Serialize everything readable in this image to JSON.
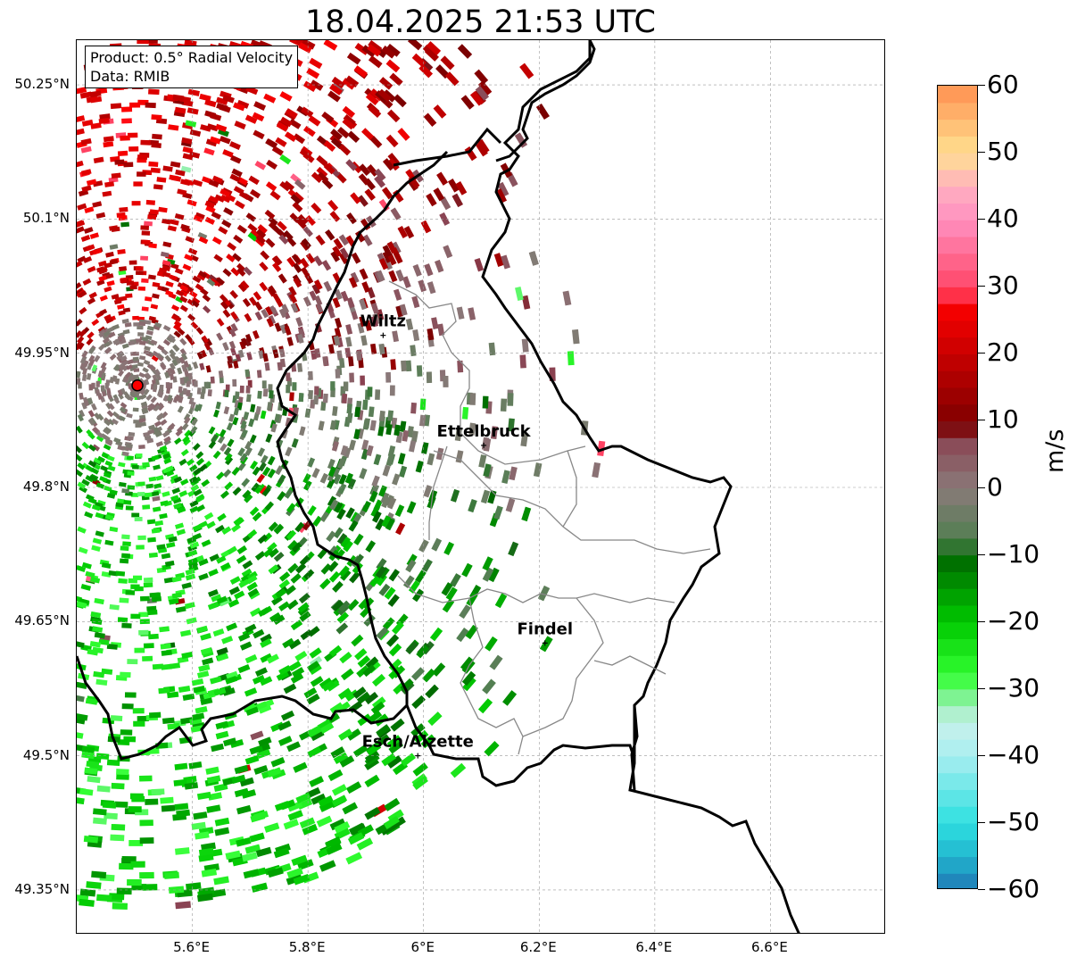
{
  "title": "18.04.2025 21:53 UTC",
  "info": {
    "product": "Product: 0.5° Radial Velocity",
    "data": "Data: RMIB"
  },
  "map": {
    "lon_range": [
      5.4,
      6.8
    ],
    "lat_range": [
      49.3,
      50.3
    ],
    "grid": true,
    "lat_ticks": [
      {
        "value": 50.25,
        "label": "50.25°N"
      },
      {
        "value": 50.1,
        "label": "50.1°N"
      },
      {
        "value": 49.95,
        "label": "49.95°N"
      },
      {
        "value": 49.8,
        "label": "49.8°N"
      },
      {
        "value": 49.65,
        "label": "49.65°N"
      },
      {
        "value": 49.5,
        "label": "49.5°N"
      },
      {
        "value": 49.35,
        "label": "49.35°N"
      }
    ],
    "lon_ticks": [
      {
        "value": 5.6,
        "label": "5.6°E"
      },
      {
        "value": 5.8,
        "label": "5.8°E"
      },
      {
        "value": 6.0,
        "label": "6°E"
      },
      {
        "value": 6.2,
        "label": "6.2°E"
      },
      {
        "value": 6.4,
        "label": "6.4°E"
      },
      {
        "value": 6.6,
        "label": "6.6°E"
      }
    ],
    "radar_site": {
      "lon": 5.505,
      "lat": 49.914,
      "color": "#ff0000"
    },
    "cities": [
      {
        "name": "Wiltz",
        "lon": 5.93,
        "lat": 49.97
      },
      {
        "name": "Ettelbruck",
        "lon": 6.104,
        "lat": 49.847
      },
      {
        "name": "Findel",
        "lon": 6.21,
        "lat": 49.626
      },
      {
        "name": "Esch/Alzette",
        "lon": 5.99,
        "lat": 49.5
      }
    ]
  },
  "colorbar": {
    "unit": "m/s",
    "range": [
      -60,
      60
    ],
    "ticks": [
      {
        "value": 60,
        "label": "60"
      },
      {
        "value": 50,
        "label": "50"
      },
      {
        "value": 40,
        "label": "40"
      },
      {
        "value": 30,
        "label": "30"
      },
      {
        "value": 20,
        "label": "20"
      },
      {
        "value": 10,
        "label": "10"
      },
      {
        "value": 0,
        "label": "0"
      },
      {
        "value": -10,
        "label": "−10"
      },
      {
        "value": -20,
        "label": "−20"
      },
      {
        "value": -30,
        "label": "−30"
      },
      {
        "value": -40,
        "label": "−40"
      },
      {
        "value": -50,
        "label": "−50"
      },
      {
        "value": -60,
        "label": "−60"
      }
    ],
    "stops": [
      {
        "value": -60,
        "color": "#1f78b4"
      },
      {
        "value": -55,
        "color": "#22b5cf"
      },
      {
        "value": -50,
        "color": "#2ee0e0"
      },
      {
        "value": -40,
        "color": "#a8eef0"
      },
      {
        "value": -35,
        "color": "#c8f0ea"
      },
      {
        "value": -32,
        "color": "#8ff0a8"
      },
      {
        "value": -28,
        "color": "#33ff33"
      },
      {
        "value": -20,
        "color": "#00c800"
      },
      {
        "value": -10,
        "color": "#006400"
      },
      {
        "value": -8,
        "color": "#4f7f4f"
      },
      {
        "value": 0,
        "color": "#8a7a7a"
      },
      {
        "value": 8,
        "color": "#8a4050"
      },
      {
        "value": 9,
        "color": "#7a0000"
      },
      {
        "value": 20,
        "color": "#c80000"
      },
      {
        "value": 28,
        "color": "#ff0000"
      },
      {
        "value": 29,
        "color": "#ff4060"
      },
      {
        "value": 40,
        "color": "#ff90c0"
      },
      {
        "value": 45,
        "color": "#ffb0c0"
      },
      {
        "value": 50,
        "color": "#ffe090"
      },
      {
        "value": 60,
        "color": "#ff9050"
      }
    ]
  }
}
